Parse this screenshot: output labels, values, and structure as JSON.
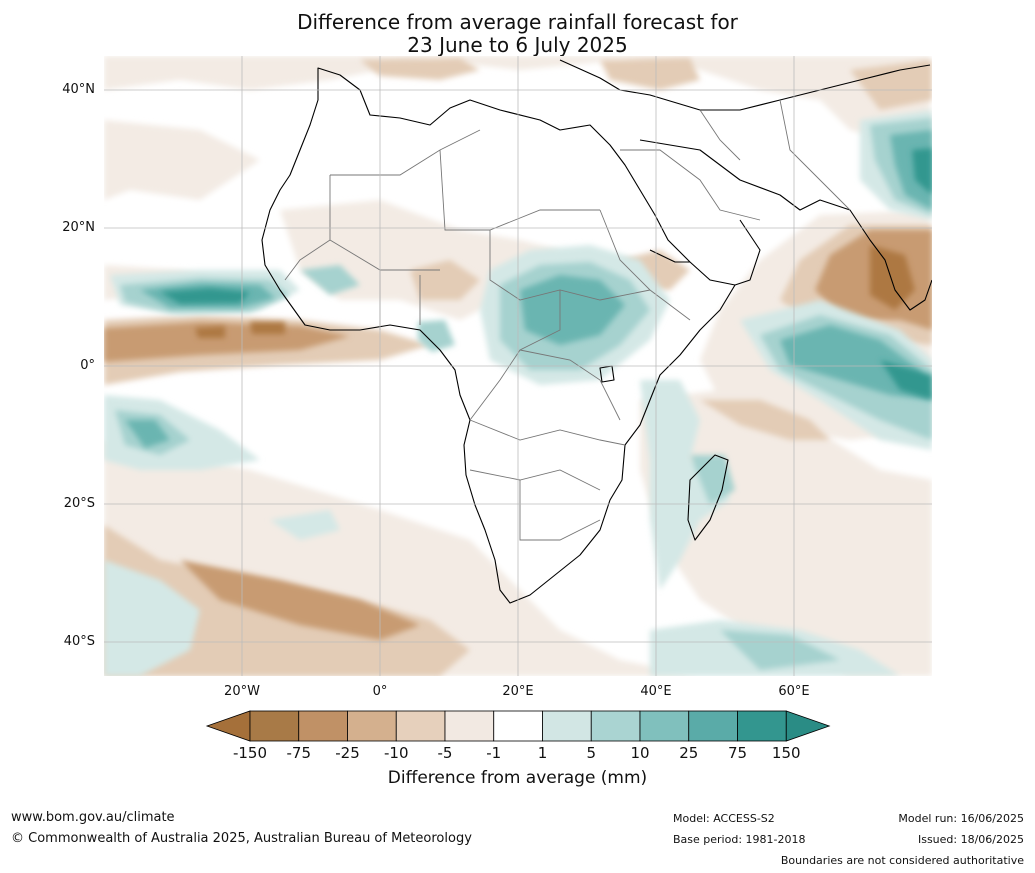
{
  "title_line1": "Difference from average rainfall forecast for",
  "title_line2": "23 June to 6 July 2025",
  "lat_labels": [
    "40°N",
    "20°N",
    "0°",
    "20°S",
    "40°S"
  ],
  "lon_labels": [
    "20°W",
    "0°",
    "20°E",
    "40°E",
    "60°E"
  ],
  "colorbar": {
    "ticks": [
      "-150",
      "-75",
      "-25",
      "-10",
      "-5",
      "-1",
      "1",
      "5",
      "10",
      "25",
      "75",
      "150"
    ],
    "colors": [
      "#a5703a",
      "#a87a47",
      "#c09166",
      "#d4b08e",
      "#e6d0bc",
      "#f2e9e2",
      "#ffffff",
      "#d2e6e4",
      "#aad4d2",
      "#80c0bd",
      "#5aaba8",
      "#33968f",
      "#2a8c85"
    ],
    "title": "Difference from average (mm)"
  },
  "footer": {
    "website": "www.bom.gov.au/climate",
    "copyright": "© Commonwealth of Australia 2025, Australian Bureau of Meteorology",
    "model": "Model: ACCESS-S2",
    "base_period": "Base period: 1981-2018",
    "model_run": "Model run: 16/06/2025",
    "issued": "Issued: 18/06/2025",
    "disclaimer": "Boundaries are not considered authoritative"
  }
}
